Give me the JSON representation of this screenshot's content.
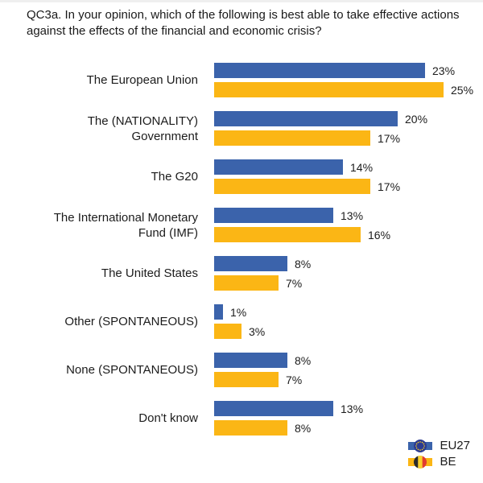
{
  "title": "QC3a. In your opinion, which of the following is best able to take effective actions against the effects of the financial and economic crisis?",
  "chart_data": {
    "type": "bar",
    "orientation": "horizontal",
    "title": "QC3a. In your opinion, which of the following is best able to take effective actions against the effects of the financial and economic crisis?",
    "value_suffix": "%",
    "xlim": [
      0,
      26
    ],
    "grid": false,
    "legend_position": "bottom-right",
    "categories": [
      "The European Union",
      "The (NATIONALITY) Government",
      "The G20",
      "The International Monetary Fund (IMF)",
      "The United States",
      "Other (SPONTANEOUS)",
      "None (SPONTANEOUS)",
      "Don't know"
    ],
    "category_lines": [
      [
        "The European Union"
      ],
      [
        "The (NATIONALITY)",
        "Government"
      ],
      [
        "The G20"
      ],
      [
        "The International Monetary",
        "Fund (IMF)"
      ],
      [
        "The United States"
      ],
      [
        "Other (SPONTANEOUS)"
      ],
      [
        "None (SPONTANEOUS)"
      ],
      [
        "Don't know"
      ]
    ],
    "series": [
      {
        "name": "EU27",
        "color": "#3B63AB",
        "values": [
          23,
          20,
          14,
          13,
          8,
          1,
          8,
          13
        ]
      },
      {
        "name": "BE",
        "color": "#FBB615",
        "values": [
          25,
          17,
          17,
          16,
          7,
          3,
          7,
          8
        ]
      }
    ]
  },
  "legend": {
    "eu_flag": {
      "field": "#2B3A92",
      "stars": "#FFD21C"
    },
    "be_flag": {
      "black": "#2B2B2B",
      "yellow": "#F8D12E",
      "red": "#E23B30"
    }
  }
}
